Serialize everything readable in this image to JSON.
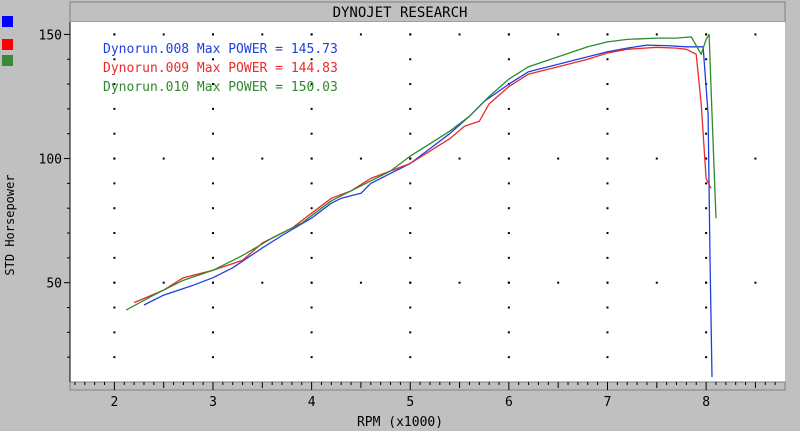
{
  "window_title": "DYNOJET RESEARCH",
  "colors": {
    "series_blue": "#1f3fe0",
    "series_red": "#ec2a2a",
    "series_green": "#2e8a2e",
    "plot_bg": "#ffffff",
    "frame_bg": "#c0c0c0"
  },
  "side_palette": [
    {
      "icon": "blue-swatch-icon",
      "color": "#0000ff"
    },
    {
      "icon": "red-swatch-icon",
      "color": "#ff0000"
    },
    {
      "icon": "green-swatch-icon",
      "color": "#3a8a3a"
    }
  ],
  "chart_data": {
    "type": "line",
    "title": "DYNOJET RESEARCH",
    "xlabel": "RPM (x1000)",
    "ylabel": "STD Horsepower",
    "xlim": [
      1.55,
      8.8
    ],
    "ylim": [
      10,
      155
    ],
    "x_ticks": [
      2,
      3,
      4,
      5,
      6,
      7,
      8
    ],
    "y_ticks": [
      50,
      100,
      150
    ],
    "grid": true,
    "legend_position": "top-left",
    "series": [
      {
        "name": "Dynorun.008",
        "legend_text": "Dynorun.008 Max POWER = 145.73",
        "color": "#1f3fe0",
        "x": [
          2.3,
          2.5,
          2.8,
          3.0,
          3.2,
          3.5,
          3.7,
          4.0,
          4.2,
          4.3,
          4.5,
          4.6,
          4.8,
          5.0,
          5.2,
          5.4,
          5.6,
          5.75,
          6.0,
          6.2,
          6.5,
          6.8,
          7.0,
          7.2,
          7.4,
          7.6,
          7.8,
          7.9,
          7.97,
          8.02,
          8.04,
          8.06
        ],
        "y": [
          41,
          45,
          49,
          52,
          56,
          64,
          69,
          76,
          82,
          84,
          86,
          90,
          94,
          98,
          104,
          110,
          117,
          123,
          130,
          135,
          138,
          141,
          143,
          144.5,
          145.7,
          145.5,
          145,
          145,
          145,
          118,
          60,
          12
        ]
      },
      {
        "name": "Dynorun.009",
        "legend_text": "Dynorun.009 Max POWER = 144.83",
        "color": "#ec2a2a",
        "x": [
          2.2,
          2.5,
          2.7,
          3.0,
          3.3,
          3.5,
          3.8,
          4.0,
          4.2,
          4.4,
          4.6,
          4.8,
          5.0,
          5.2,
          5.4,
          5.55,
          5.7,
          5.8,
          6.0,
          6.2,
          6.5,
          6.8,
          7.0,
          7.2,
          7.5,
          7.7,
          7.8,
          7.9,
          7.95,
          8.0,
          8.05
        ],
        "y": [
          42,
          47,
          52,
          55,
          59,
          66,
          72,
          78,
          84,
          87,
          92,
          95,
          98,
          103,
          108,
          113,
          115,
          122,
          129,
          134,
          137,
          140,
          142.5,
          144,
          144.8,
          144.5,
          144,
          142,
          122,
          92,
          88
        ]
      },
      {
        "name": "Dynorun.010",
        "legend_text": "Dynorun.010 Max POWER = 150.03",
        "color": "#2e8a2e",
        "x": [
          2.12,
          2.4,
          2.7,
          3.0,
          3.3,
          3.6,
          3.9,
          4.0,
          4.2,
          4.4,
          4.6,
          4.8,
          5.0,
          5.2,
          5.4,
          5.6,
          5.8,
          6.0,
          6.2,
          6.5,
          6.8,
          7.0,
          7.2,
          7.5,
          7.7,
          7.85,
          7.95,
          8.0,
          8.03,
          8.06,
          8.1
        ],
        "y": [
          39,
          45,
          51,
          55,
          61,
          68,
          74,
          77,
          83,
          87,
          91,
          95,
          101,
          106,
          111,
          117,
          125,
          132,
          137,
          141,
          145,
          147,
          148,
          148.5,
          148.5,
          149,
          142,
          148,
          150,
          118,
          76
        ]
      }
    ]
  }
}
